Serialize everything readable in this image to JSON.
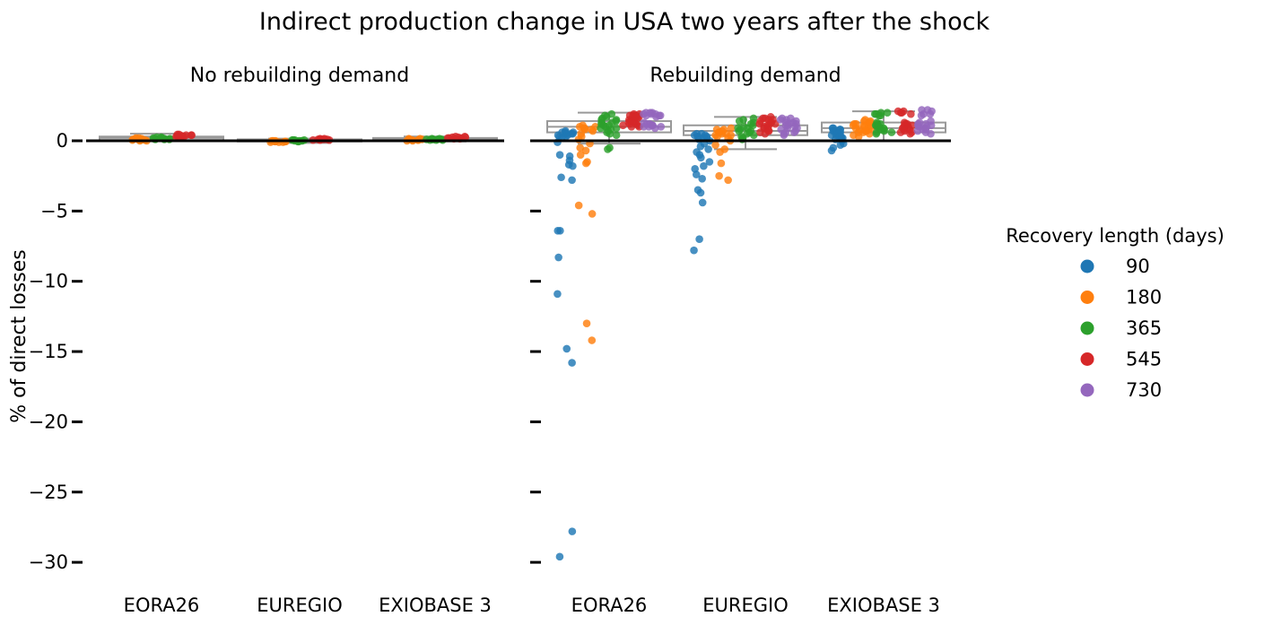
{
  "chart_data": {
    "type": "scatter",
    "title": "Indirect production change in USA two years after the shock",
    "ylabel": "% of direct losses",
    "ylim": [
      -32,
      3.5
    ],
    "yticks": [
      0,
      -5,
      -10,
      -15,
      -20,
      -25,
      -30
    ],
    "categories": [
      "EORA26",
      "EUREGIO",
      "EXIOBASE 3"
    ],
    "legend": {
      "title": "Recovery length (days)",
      "position": "right",
      "entries": [
        {
          "label": "90",
          "color": "#1f77b4"
        },
        {
          "label": "180",
          "color": "#ff7f0e"
        },
        {
          "label": "365",
          "color": "#2ca02c"
        },
        {
          "label": "545",
          "color": "#d62728"
        },
        {
          "label": "730",
          "color": "#9467bd"
        }
      ]
    },
    "panels": [
      {
        "title": "No rebuilding demand",
        "boxes": [
          {
            "category": "EORA26",
            "q1": 0.05,
            "q3": 0.3,
            "median": 0.2,
            "whisker_low": 0.0,
            "whisker_high": 0.5
          },
          {
            "category": "EUREGIO",
            "q1": -0.05,
            "q3": 0.1,
            "median": 0.05,
            "whisker_low": -0.15,
            "whisker_high": 0.15
          },
          {
            "category": "EXIOBASE 3",
            "q1": 0.0,
            "q3": 0.2,
            "median": 0.1,
            "whisker_low": -0.05,
            "whisker_high": 0.3
          }
        ],
        "points": [
          {
            "category": "EORA26",
            "series": "180",
            "values": [
              0.0,
              0.05,
              0.1,
              0.15,
              0.2,
              0.1,
              0.05,
              0.0,
              0.15,
              0.1,
              0.2,
              0.05
            ]
          },
          {
            "category": "EORA26",
            "series": "365",
            "values": [
              0.1,
              0.15,
              0.2,
              0.25,
              0.15,
              0.1,
              0.2,
              0.25,
              0.15,
              0.2,
              0.1,
              0.15
            ]
          },
          {
            "category": "EORA26",
            "series": "545",
            "values": [
              0.3,
              0.35,
              0.4,
              0.45,
              0.35,
              0.3,
              0.4,
              0.45,
              0.35,
              0.4,
              0.3,
              0.35
            ]
          },
          {
            "category": "EUREGIO",
            "series": "180",
            "values": [
              -0.1,
              -0.05,
              0.0,
              -0.1,
              -0.05,
              0.0,
              -0.1,
              -0.05,
              0.0,
              -0.05
            ]
          },
          {
            "category": "EUREGIO",
            "series": "365",
            "values": [
              0.0,
              0.05,
              0.0,
              -0.05,
              0.05,
              0.0,
              0.05,
              0.0,
              -0.05,
              0.05
            ]
          },
          {
            "category": "EUREGIO",
            "series": "545",
            "values": [
              0.05,
              0.1,
              0.15,
              0.1,
              0.05,
              0.1,
              0.15,
              0.1,
              0.05,
              0.1
            ]
          },
          {
            "category": "EXIOBASE 3",
            "series": "180",
            "values": [
              0.0,
              0.05,
              0.1,
              0.15,
              0.05,
              0.0,
              0.1,
              0.05,
              0.15,
              0.1
            ]
          },
          {
            "category": "EXIOBASE 3",
            "series": "365",
            "values": [
              0.05,
              0.1,
              0.15,
              0.1,
              0.05,
              0.1,
              0.15,
              0.1,
              0.05,
              0.1
            ]
          },
          {
            "category": "EXIOBASE 3",
            "series": "545",
            "values": [
              0.15,
              0.2,
              0.25,
              0.3,
              0.2,
              0.15,
              0.25,
              0.3,
              0.2,
              0.25
            ]
          }
        ]
      },
      {
        "title": "Rebuilding demand",
        "boxes": [
          {
            "category": "EORA26",
            "q1": 0.6,
            "q3": 1.4,
            "median": 1.0,
            "whisker_low": -0.2,
            "whisker_high": 2.0
          },
          {
            "category": "EUREGIO",
            "q1": 0.4,
            "q3": 1.1,
            "median": 0.7,
            "whisker_low": -0.6,
            "whisker_high": 1.7
          },
          {
            "category": "EXIOBASE 3",
            "q1": 0.6,
            "q3": 1.3,
            "median": 0.9,
            "whisker_low": 0.0,
            "whisker_high": 2.1
          }
        ],
        "points": [
          {
            "category": "EORA26",
            "series": "90",
            "values": [
              0.6,
              0.5,
              0.4,
              0.7,
              0.3,
              0.5,
              0.6,
              0.2,
              -0.1,
              -1.0,
              -1.1,
              -1.4,
              -1.7,
              -1.8,
              -2.6,
              -2.8,
              -6.4,
              -6.4,
              -8.3,
              -10.9,
              -14.8,
              -15.8,
              -27.8,
              -29.6,
              0.5,
              0.4,
              0.6,
              0.3
            ]
          },
          {
            "category": "EORA26",
            "series": "180",
            "values": [
              1.0,
              0.8,
              1.1,
              0.9,
              0.7,
              0.5,
              0.3,
              0.1,
              -0.2,
              -0.5,
              -0.7,
              -1.0,
              -1.5,
              -1.6,
              -4.6,
              -5.2,
              -13.0,
              -14.2,
              0.9,
              1.0,
              0.8
            ]
          },
          {
            "category": "EORA26",
            "series": "365",
            "values": [
              1.9,
              1.8,
              1.7,
              1.5,
              1.4,
              1.3,
              1.2,
              1.1,
              1.0,
              0.9,
              0.8,
              0.7,
              0.6,
              0.5,
              0.4,
              -0.5,
              -0.6,
              1.6,
              1.5,
              1.3,
              1.1,
              0.9
            ]
          },
          {
            "category": "EORA26",
            "series": "545",
            "values": [
              1.9,
              1.8,
              1.7,
              1.6,
              1.5,
              1.4,
              1.3,
              1.2,
              1.1,
              1.0,
              1.9,
              1.8,
              1.7,
              1.2,
              1.1,
              1.0,
              1.5,
              1.4,
              1.3,
              1.8,
              1.7
            ]
          },
          {
            "category": "EORA26",
            "series": "730",
            "values": [
              2.0,
              1.9,
              1.8,
              1.7,
              1.3,
              1.2,
              1.1,
              1.0,
              0.9,
              2.0,
              1.9,
              1.8,
              1.2,
              1.1,
              1.0,
              1.9,
              1.8,
              1.1,
              1.0,
              2.0
            ]
          },
          {
            "category": "EUREGIO",
            "series": "90",
            "values": [
              0.5,
              0.4,
              0.3,
              0.2,
              0.1,
              0.0,
              -0.2,
              -0.4,
              -0.6,
              -0.8,
              -1.0,
              -1.2,
              -1.5,
              -1.8,
              -2.0,
              -2.4,
              -2.7,
              -3.5,
              -3.7,
              -4.4,
              -7.0,
              -7.8,
              0.4,
              0.3,
              0.5,
              0.2
            ]
          },
          {
            "category": "EUREGIO",
            "series": "180",
            "values": [
              0.9,
              0.8,
              0.7,
              0.6,
              0.5,
              0.4,
              0.3,
              0.2,
              0.0,
              -0.3,
              -0.6,
              -0.8,
              -1.6,
              -2.5,
              -2.8,
              0.8,
              0.6,
              0.5,
              0.4
            ]
          },
          {
            "category": "EUREGIO",
            "series": "365",
            "values": [
              1.6,
              1.5,
              1.3,
              1.2,
              1.0,
              0.9,
              0.8,
              0.7,
              0.6,
              0.5,
              0.4,
              0.3,
              0.2,
              0.1,
              1.4,
              1.1,
              0.9,
              0.7
            ]
          },
          {
            "category": "EUREGIO",
            "series": "545",
            "values": [
              1.7,
              1.6,
              1.5,
              1.4,
              1.3,
              1.2,
              1.1,
              1.0,
              0.9,
              0.8,
              0.7,
              0.6,
              0.5,
              1.5,
              1.3,
              1.1,
              0.9,
              0.7,
              1.6,
              1.2
            ]
          },
          {
            "category": "EUREGIO",
            "series": "730",
            "values": [
              1.6,
              1.5,
              1.4,
              1.3,
              1.2,
              1.1,
              1.0,
              0.9,
              0.8,
              0.7,
              0.6,
              0.5,
              0.4,
              1.5,
              1.3,
              1.1,
              0.9,
              0.6,
              1.6,
              1.2
            ]
          },
          {
            "category": "EXIOBASE 3",
            "series": "90",
            "values": [
              0.9,
              0.8,
              0.7,
              0.6,
              0.5,
              0.4,
              0.3,
              0.2,
              0.1,
              0.0,
              -0.2,
              -0.3,
              -0.5,
              -0.7,
              0.8,
              0.6,
              0.4,
              0.2,
              0.9,
              0.7,
              0.5,
              0.3
            ]
          },
          {
            "category": "EXIOBASE 3",
            "series": "180",
            "values": [
              1.5,
              1.4,
              1.3,
              1.2,
              1.1,
              1.0,
              0.9,
              0.8,
              0.7,
              0.6,
              0.5,
              0.4,
              0.3,
              1.4,
              1.2,
              1.0,
              0.8,
              0.6,
              1.3,
              1.1,
              0.9,
              0.7
            ]
          },
          {
            "category": "EXIOBASE 3",
            "series": "365",
            "values": [
              2.0,
              1.9,
              1.8,
              1.3,
              1.2,
              1.1,
              1.0,
              0.9,
              0.8,
              0.7,
              0.6,
              0.5,
              2.0,
              1.9,
              1.2,
              1.0,
              0.8,
              0.6,
              1.8,
              1.1
            ]
          },
          {
            "category": "EXIOBASE 3",
            "series": "545",
            "values": [
              2.1,
              2.0,
              1.9,
              1.3,
              1.2,
              1.1,
              1.0,
              0.9,
              0.8,
              0.7,
              0.6,
              0.5,
              2.0,
              1.2,
              1.0,
              0.8,
              0.6,
              2.1,
              1.1,
              0.9
            ]
          },
          {
            "category": "EXIOBASE 3",
            "series": "730",
            "values": [
              2.2,
              2.1,
              1.9,
              1.8,
              1.4,
              1.3,
              1.2,
              1.1,
              1.0,
              0.9,
              0.8,
              0.7,
              0.6,
              0.5,
              1.9,
              1.2,
              1.0,
              0.8,
              2.2,
              1.1
            ]
          }
        ]
      }
    ]
  }
}
